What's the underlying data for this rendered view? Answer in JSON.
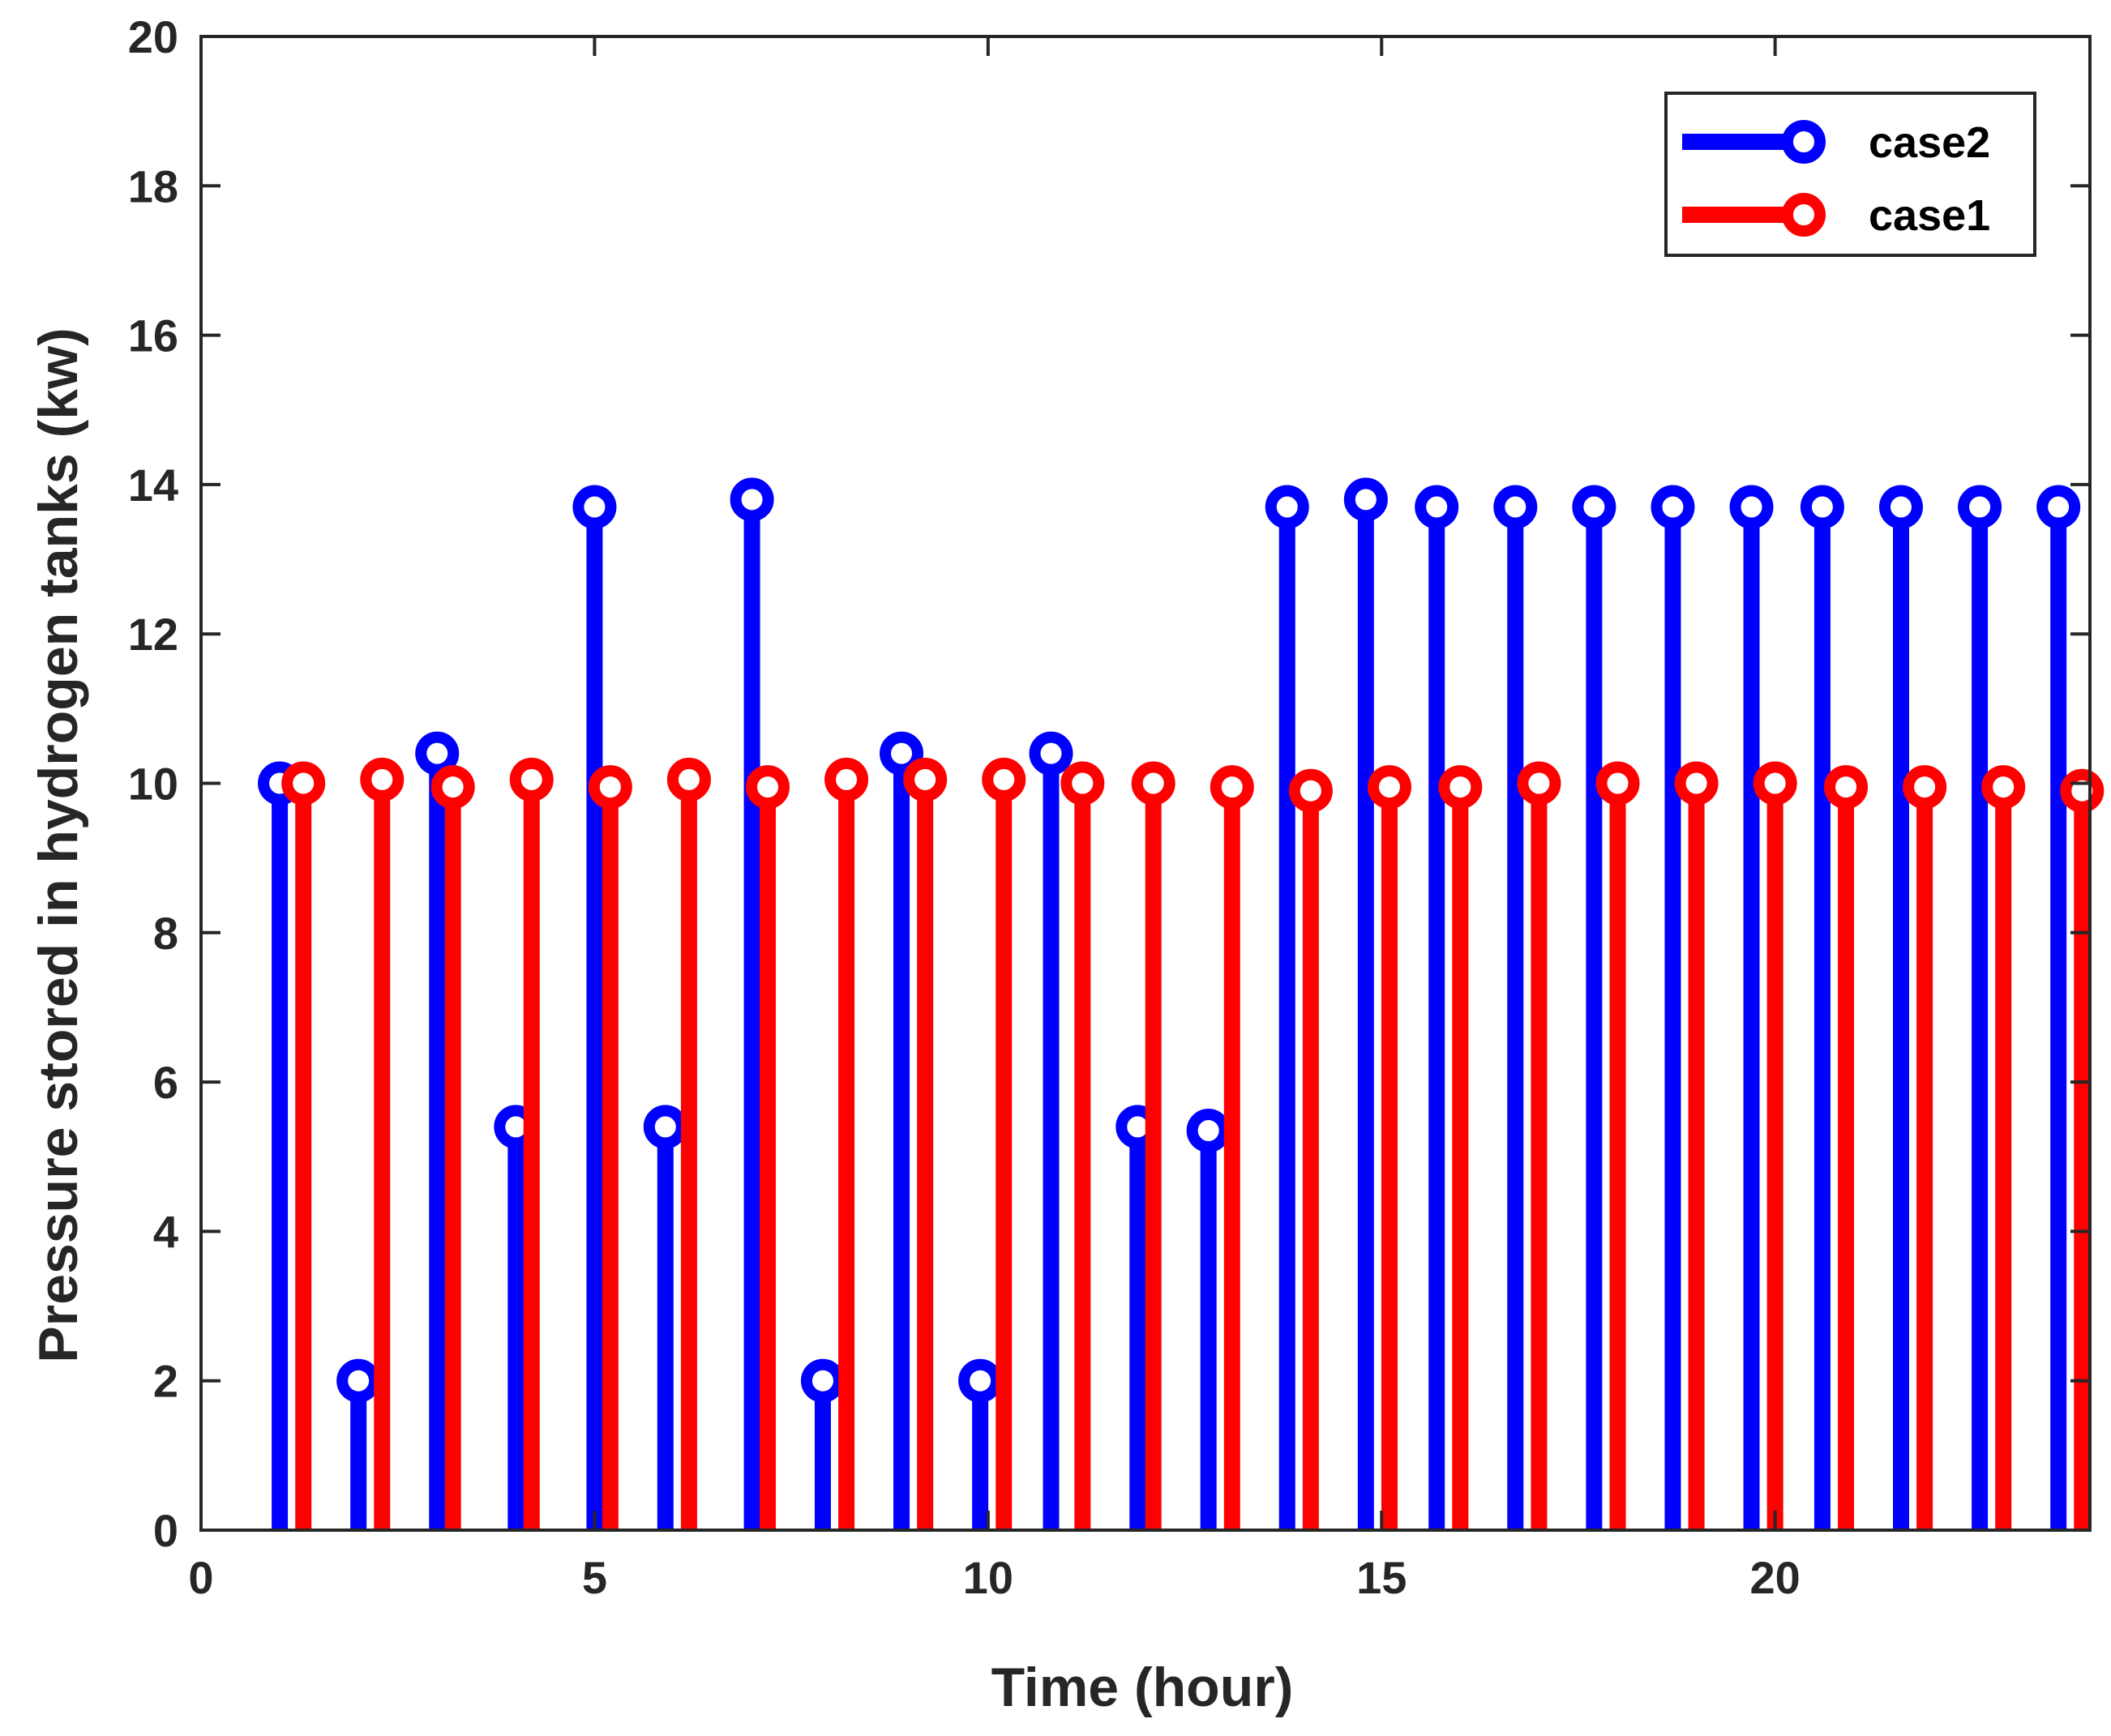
{
  "chart_data": {
    "type": "stem",
    "title": "",
    "xlabel": "Time (hour)",
    "ylabel": "Pressure stored in hydrogen tanks (kw)",
    "xlim": [
      0,
      24
    ],
    "ylim": [
      0,
      20
    ],
    "xticks": [
      "0",
      "5",
      "10",
      "15",
      "20"
    ],
    "yticks": [
      "0",
      "2",
      "4",
      "6",
      "8",
      "10",
      "12",
      "14",
      "16",
      "18",
      "20"
    ],
    "xtick_values": [
      0,
      5,
      10,
      15,
      20
    ],
    "ytick_values": [
      0,
      2,
      4,
      6,
      8,
      10,
      12,
      14,
      16,
      18,
      20
    ],
    "grid": false,
    "legend_position": "top-right",
    "series": [
      {
        "name": "case2",
        "color": "#0000ff",
        "x": [
          1,
          2,
          3,
          4,
          5,
          5.9,
          7,
          7.9,
          8.9,
          9.9,
          10.8,
          11.9,
          12.8,
          13.8,
          14.8,
          15.7,
          16.7,
          17.7,
          18.7,
          19.7,
          20.6,
          21.6,
          22.6,
          23.6
        ],
        "values": [
          10,
          2,
          10.4,
          5.4,
          13.7,
          5.4,
          13.8,
          2,
          10.4,
          2,
          10.4,
          5.4,
          5.35,
          13.7,
          13.8,
          13.7,
          13.7,
          13.7,
          13.7,
          13.7,
          13.7,
          13.7,
          13.7,
          13.7
        ]
      },
      {
        "name": "case1",
        "color": "#ff0000",
        "x": [
          1.3,
          2.3,
          3.2,
          4.2,
          5.2,
          6.2,
          7.2,
          8.2,
          9.2,
          10.2,
          11.2,
          12.1,
          13.1,
          14.1,
          15.1,
          16.0,
          17.0,
          18.0,
          19.0,
          20.0,
          20.9,
          21.9,
          22.9,
          23.9
        ],
        "values": [
          10,
          10.05,
          9.95,
          10.05,
          9.95,
          10.05,
          9.95,
          10.05,
          10.05,
          10.05,
          10.0,
          10.0,
          9.95,
          9.9,
          9.95,
          9.95,
          10.0,
          10.0,
          10.0,
          10.0,
          9.95,
          9.95,
          9.95,
          9.9
        ]
      }
    ]
  }
}
